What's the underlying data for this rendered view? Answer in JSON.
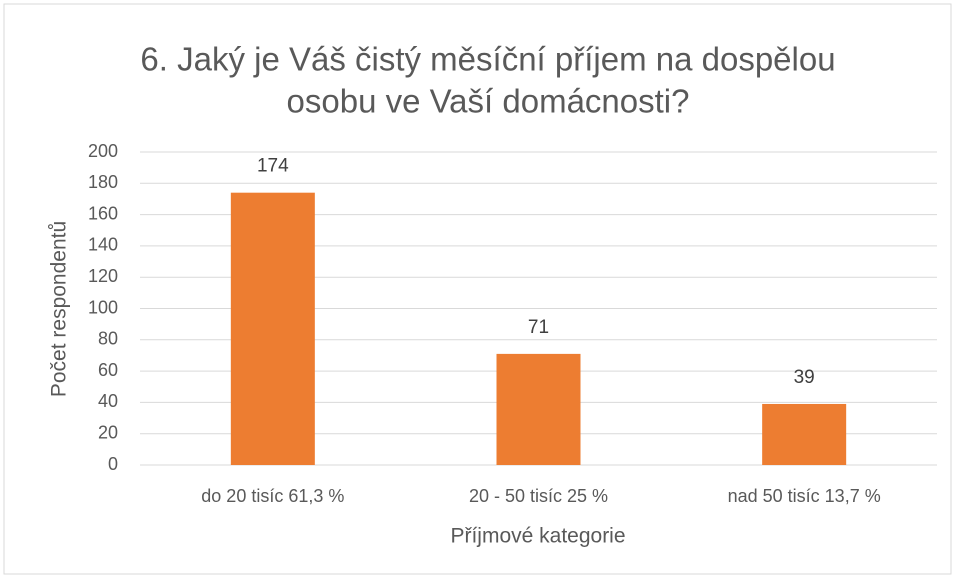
{
  "chart_data": {
    "type": "bar",
    "title": [
      "6. Jaký je Váš čistý měsíční příjem na dospělou",
      "osobu ve Vaší domácnosti?"
    ],
    "x_label": "Příjmové kategorie",
    "y_label": "Počet respondentů",
    "categories": [
      "do 20 tisíc 61,3 %",
      "20 - 50 tisíc 25 %",
      "nad 50 tisíc 13,7 %"
    ],
    "values": [
      174,
      71,
      39
    ],
    "color": "#ed7d31",
    "ylim": [
      0,
      200
    ],
    "yticks": [
      0,
      20,
      40,
      60,
      80,
      100,
      120,
      140,
      160,
      180,
      200
    ],
    "grid": true
  }
}
